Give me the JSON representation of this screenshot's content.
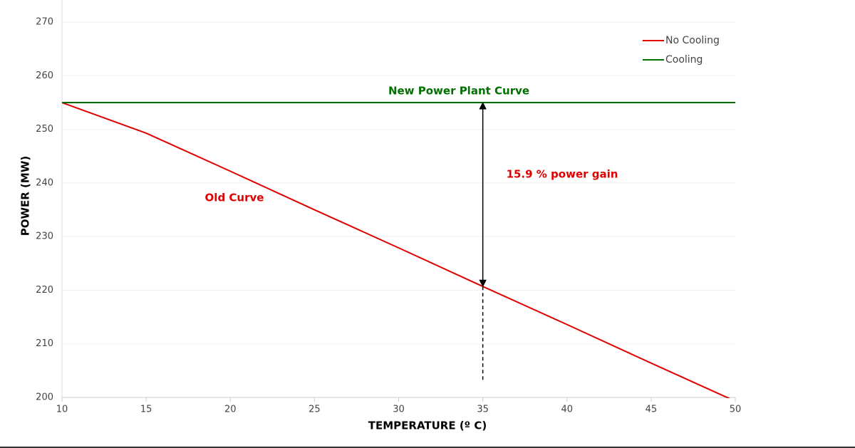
{
  "chart_data": {
    "type": "line",
    "x": [
      10,
      15,
      20,
      25,
      30,
      35,
      40,
      45,
      50
    ],
    "series": [
      {
        "name": "No Cooling",
        "color": "#e00000",
        "values": [
          255,
          249.3,
          242.2,
          235,
          227.9,
          220.7,
          213.6,
          206.4,
          199.3
        ]
      },
      {
        "name": "Cooling",
        "color": "#007000",
        "values": [
          255,
          255,
          255,
          255,
          255,
          255,
          255,
          255,
          255
        ]
      }
    ],
    "xlim": [
      10,
      50
    ],
    "xticks": [
      10,
      15,
      20,
      25,
      30,
      35,
      40,
      45,
      50
    ],
    "ylim": [
      200,
      274
    ],
    "yticks": [
      200,
      210,
      220,
      230,
      240,
      250,
      260,
      270
    ],
    "xlabel": "TEMPERATURE (º C)",
    "ylabel": "POWER (MW)",
    "grid": true,
    "legend": "top-right",
    "annotations": [
      "New Power Plant Curve",
      "Old Curve",
      "15.9 % power gain"
    ]
  }
}
